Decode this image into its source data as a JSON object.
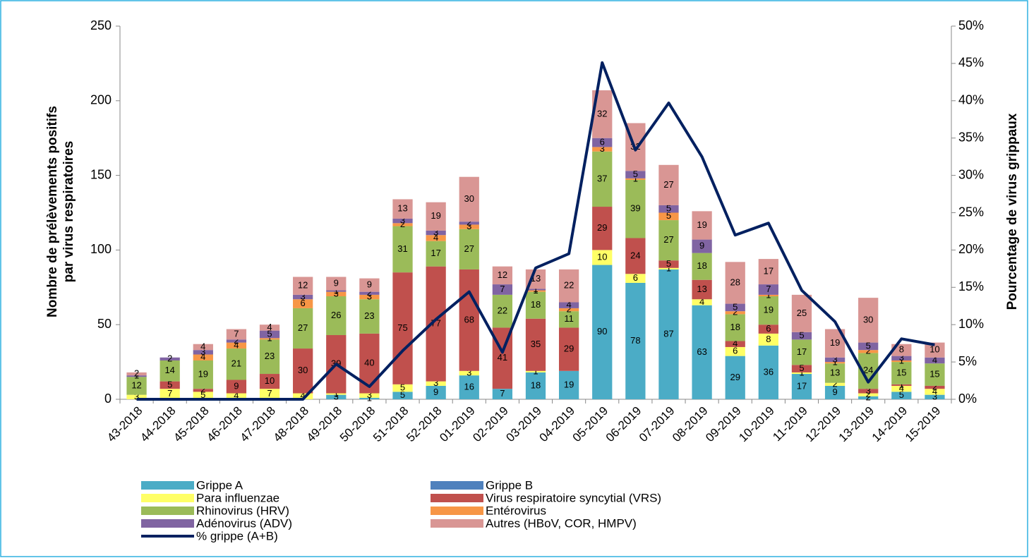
{
  "chart_data": {
    "type": "bar",
    "stacked": true,
    "y_label_lines": [
      "Nombre de prélèvements positifs",
      "par virus respiratoires"
    ],
    "y2_label": "Pourcentage de virus grippaux",
    "categories": [
      "43-2018",
      "44-2018",
      "45-2018",
      "46-2018",
      "47-2018",
      "48-2018",
      "49-2018",
      "50-2018",
      "51-2018",
      "52-2018",
      "01-2019",
      "02-2019",
      "03-2019",
      "04-2019",
      "05-2019",
      "06-2019",
      "07-2019",
      "08-2019",
      "09-2019",
      "10-2019",
      "11-2019",
      "12-2019",
      "13-2019",
      "14-2019",
      "15-2019"
    ],
    "series": [
      {
        "name": "Grippe A",
        "color": "#4bacc6",
        "values": [
          0,
          0,
          0,
          0,
          0,
          0,
          3,
          1,
          5,
          9,
          16,
          7,
          18,
          19,
          90,
          78,
          87,
          63,
          29,
          36,
          17,
          9,
          2,
          5,
          3
        ]
      },
      {
        "name": "Grippe B",
        "color": "#4f81bd",
        "values": [
          0,
          0,
          0,
          0,
          0,
          0,
          0,
          0,
          0,
          0,
          0,
          0,
          0,
          0,
          0,
          0,
          0,
          0,
          0,
          0,
          0,
          0,
          0,
          0,
          0
        ]
      },
      {
        "name": "Para influenzae",
        "color": "#ffff66",
        "values": [
          3,
          7,
          5,
          4,
          7,
          4,
          1,
          3,
          5,
          3,
          3,
          0,
          1,
          0,
          10,
          6,
          1,
          4,
          6,
          8,
          1,
          2,
          2,
          4,
          4
        ]
      },
      {
        "name": "Virus respiratoire syncytial (VRS)",
        "color": "#c0504d",
        "values": [
          0,
          5,
          2,
          9,
          10,
          30,
          39,
          40,
          75,
          77,
          68,
          41,
          35,
          29,
          29,
          24,
          5,
          13,
          4,
          6,
          5,
          0,
          3,
          1,
          2
        ]
      },
      {
        "name": "Rhinovirus (HRV)",
        "color": "#9bbb59",
        "values": [
          12,
          14,
          19,
          21,
          23,
          27,
          26,
          23,
          31,
          17,
          27,
          22,
          18,
          11,
          37,
          39,
          27,
          18,
          18,
          19,
          17,
          13,
          24,
          15,
          15
        ]
      },
      {
        "name": "Entérovirus",
        "color": "#f79646",
        "values": [
          0,
          0,
          4,
          4,
          1,
          6,
          3,
          3,
          2,
          4,
          3,
          0,
          1,
          2,
          3,
          1,
          5,
          0,
          2,
          1,
          0,
          1,
          2,
          1,
          0
        ]
      },
      {
        "name": "Adénovirus (ADV)",
        "color": "#8064a2",
        "values": [
          1,
          2,
          3,
          2,
          5,
          3,
          1,
          2,
          3,
          3,
          2,
          7,
          1,
          4,
          6,
          5,
          5,
          9,
          5,
          7,
          5,
          3,
          5,
          3,
          4
        ]
      },
      {
        "name": "Autres (HBoV, COR, HMPV)",
        "color": "#d99694",
        "values": [
          2,
          0,
          4,
          7,
          4,
          12,
          9,
          9,
          13,
          19,
          30,
          12,
          13,
          22,
          32,
          32,
          27,
          19,
          28,
          17,
          25,
          19,
          30,
          8,
          10
        ]
      },
      {
        "name": "% grippe (A+B)",
        "color": "#002060",
        "axis": "y2",
        "values": [
          0,
          0,
          0,
          0,
          0,
          0,
          4.7,
          1.7,
          6.5,
          10.7,
          14.4,
          6.3,
          17.6,
          19.5,
          45.1,
          33.4,
          39.7,
          32.5,
          22.0,
          23.6,
          14.6,
          10.4,
          2.3,
          8.1,
          7.3
        ]
      }
    ],
    "ylim": [
      0,
      250
    ],
    "yticks": [
      0,
      50,
      100,
      150,
      200,
      250
    ],
    "y2lim": [
      0,
      50
    ],
    "y2ticks": [
      {
        "value": 0,
        "label": "0%"
      },
      {
        "value": 5,
        "label": "5%"
      },
      {
        "value": 10,
        "label": "10%"
      },
      {
        "value": 15,
        "label": "15%"
      },
      {
        "value": 20,
        "label": "20%"
      },
      {
        "value": 25,
        "label": "25%"
      },
      {
        "value": 30,
        "label": "30%"
      },
      {
        "value": 35,
        "label": "35%"
      },
      {
        "value": 40,
        "label": "40%"
      },
      {
        "value": 45,
        "label": "45%"
      },
      {
        "value": 50,
        "label": "50%"
      }
    ]
  }
}
